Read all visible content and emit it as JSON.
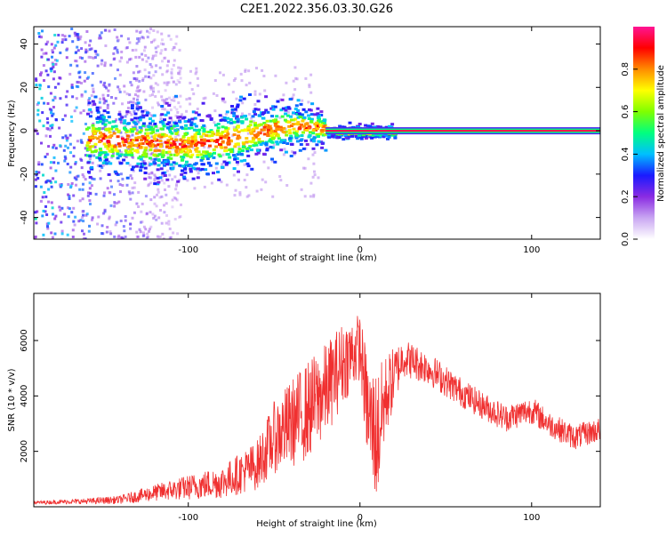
{
  "title": "C2E1.2022.356.03.30.G26",
  "chart_data": [
    {
      "type": "heatmap",
      "subtitle": "spectrogram",
      "xlabel": "Height of straight line (km)",
      "ylabel": "Frequency (Hz)",
      "xlim": [
        -190,
        140
      ],
      "ylim": [
        -50,
        48
      ],
      "xticks": [
        -100,
        0,
        100
      ],
      "yticks": [
        -40,
        -20,
        0,
        20,
        40
      ],
      "colorbar": {
        "label": "Normalized spectral amplitude",
        "range": [
          0,
          1
        ],
        "ticks": [
          "0.0",
          "0.2",
          "0.4",
          "0.6",
          "0.8"
        ],
        "colors": [
          "#ffffff",
          "#c9a6f2",
          "#8a2be2",
          "#1a1aff",
          "#00bfff",
          "#00ff7f",
          "#7fff00",
          "#ffff00",
          "#ff8c00",
          "#ff0000",
          "#ff1493"
        ]
      },
      "features": {
        "strong_line": {
          "x_range": [
            -20,
            140
          ],
          "freq": 0,
          "amplitude": 0.95
        },
        "centroid_track": [
          {
            "x": -160,
            "f": -3
          },
          {
            "x": -140,
            "f": -4
          },
          {
            "x": -120,
            "f": -5
          },
          {
            "x": -100,
            "f": -6
          },
          {
            "x": -80,
            "f": -4
          },
          {
            "x": -60,
            "f": 0
          },
          {
            "x": -40,
            "f": 3
          },
          {
            "x": -25,
            "f": 2
          },
          {
            "x": -15,
            "f": 0
          },
          {
            "x": 0,
            "f": 0
          },
          {
            "x": 20,
            "f": 0
          }
        ],
        "noise_region": {
          "x_range": [
            -190,
            -125
          ],
          "freq_range": [
            -50,
            48
          ]
        }
      }
    },
    {
      "type": "line",
      "xlabel": "Height of straight line (km)",
      "ylabel": "SNR (10 * v/v)",
      "xlim": [
        -190,
        140
      ],
      "ylim": [
        0,
        7700
      ],
      "xticks": [
        -100,
        0,
        100
      ],
      "yticks": [
        2000,
        4000,
        6000
      ],
      "color": "#f03030",
      "envelope": [
        {
          "x": -190,
          "mean": 150,
          "spread": 60
        },
        {
          "x": -160,
          "mean": 200,
          "spread": 100
        },
        {
          "x": -140,
          "mean": 250,
          "spread": 150
        },
        {
          "x": -120,
          "mean": 500,
          "spread": 300
        },
        {
          "x": -100,
          "mean": 700,
          "spread": 450
        },
        {
          "x": -80,
          "mean": 900,
          "spread": 600
        },
        {
          "x": -60,
          "mean": 1500,
          "spread": 900
        },
        {
          "x": -50,
          "mean": 2500,
          "spread": 1300
        },
        {
          "x": -40,
          "mean": 3000,
          "spread": 1600
        },
        {
          "x": -30,
          "mean": 3500,
          "spread": 1800
        },
        {
          "x": -20,
          "mean": 4200,
          "spread": 1700
        },
        {
          "x": -10,
          "mean": 5200,
          "spread": 1500
        },
        {
          "x": 0,
          "mean": 5800,
          "spread": 1200
        },
        {
          "x": 5,
          "mean": 3200,
          "spread": 2000
        },
        {
          "x": 10,
          "mean": 2500,
          "spread": 2500
        },
        {
          "x": 15,
          "mean": 4000,
          "spread": 1500
        },
        {
          "x": 25,
          "mean": 5400,
          "spread": 700
        },
        {
          "x": 40,
          "mean": 5000,
          "spread": 600
        },
        {
          "x": 55,
          "mean": 4300,
          "spread": 550
        },
        {
          "x": 70,
          "mean": 3700,
          "spread": 500
        },
        {
          "x": 85,
          "mean": 3200,
          "spread": 500
        },
        {
          "x": 100,
          "mean": 3500,
          "spread": 500
        },
        {
          "x": 110,
          "mean": 3000,
          "spread": 450
        },
        {
          "x": 125,
          "mean": 2500,
          "spread": 450
        },
        {
          "x": 140,
          "mean": 2800,
          "spread": 450
        }
      ]
    }
  ]
}
